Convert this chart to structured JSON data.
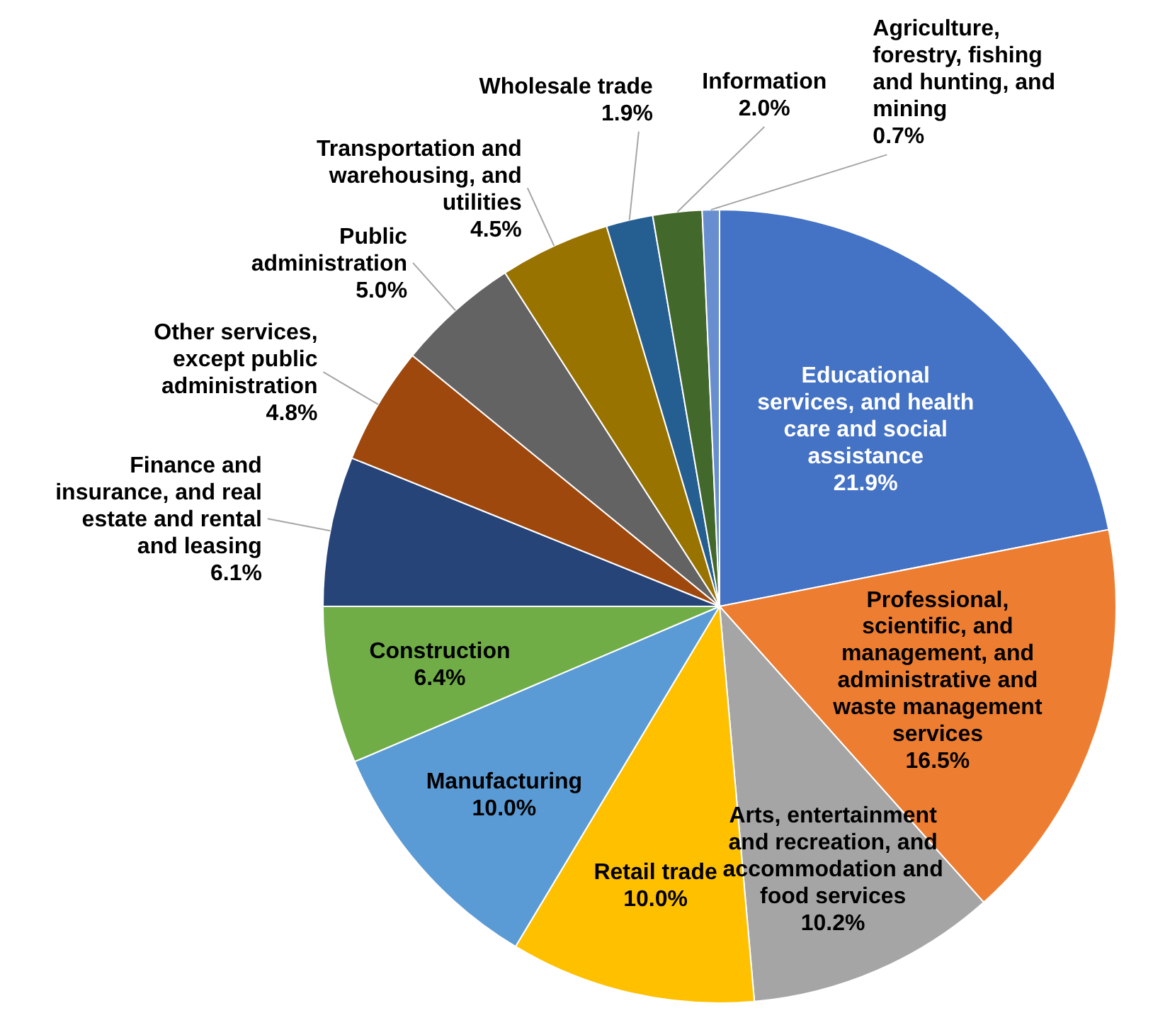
{
  "chart_data": {
    "type": "pie",
    "categories": [
      "Educational services, and health care and social assistance",
      "Professional, scientific, and management, and administrative and waste management services",
      "Arts, entertainment and recreation, and accommodation and food services",
      "Retail trade",
      "Manufacturing",
      "Construction",
      "Finance and insurance, and real estate and rental and leasing",
      "Other services, except public administration",
      "Public administration",
      "Transportation and warehousing, and utilities",
      "Wholesale trade",
      "Information",
      "Agriculture, forestry, fishing and hunting, and mining"
    ],
    "values": [
      21.9,
      16.5,
      10.2,
      10.0,
      10.0,
      6.4,
      6.1,
      4.8,
      5.0,
      4.5,
      1.9,
      2.0,
      0.7
    ],
    "colors": [
      "#4472c4",
      "#ed7d31",
      "#a5a5a5",
      "#ffc000",
      "#5b9bd5",
      "#70ad47",
      "#264478",
      "#9e480e",
      "#636363",
      "#997300",
      "#255e91",
      "#43682b",
      "#698ed0"
    ],
    "value_labels": [
      "21.9%",
      "16.5%",
      "10.2%",
      "10.0%",
      "10.0%",
      "6.4%",
      "6.1%",
      "4.8%",
      "5.0%",
      "4.5%",
      "1.9%",
      "2.0%",
      "0.7%"
    ]
  }
}
